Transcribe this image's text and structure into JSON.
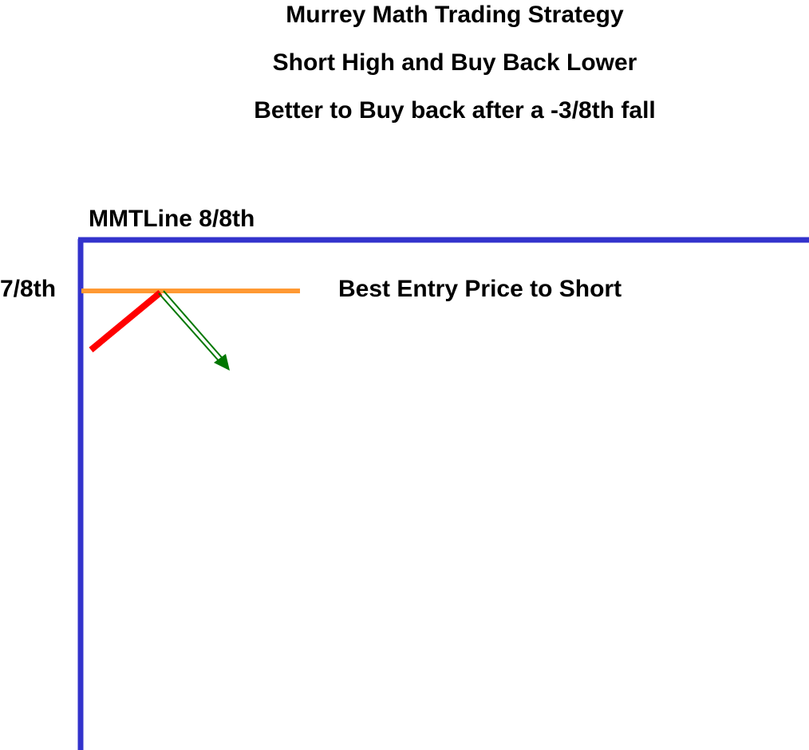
{
  "title_lines": [
    "Murrey Math Trading Strategy",
    "Short High and Buy Back Lower",
    "Better to Buy back after a -3/8th fall"
  ],
  "labels": {
    "mmt_line_8_8": "MMTLine 8/8th",
    "level_7_8": "7/8th",
    "best_entry": "Best Entry Price to Short"
  },
  "colors": {
    "mmt_line": "#3333cc",
    "level_7_8_line": "#ff9933",
    "price_rise": "#ff0000",
    "short_arrow": "#007700"
  }
}
